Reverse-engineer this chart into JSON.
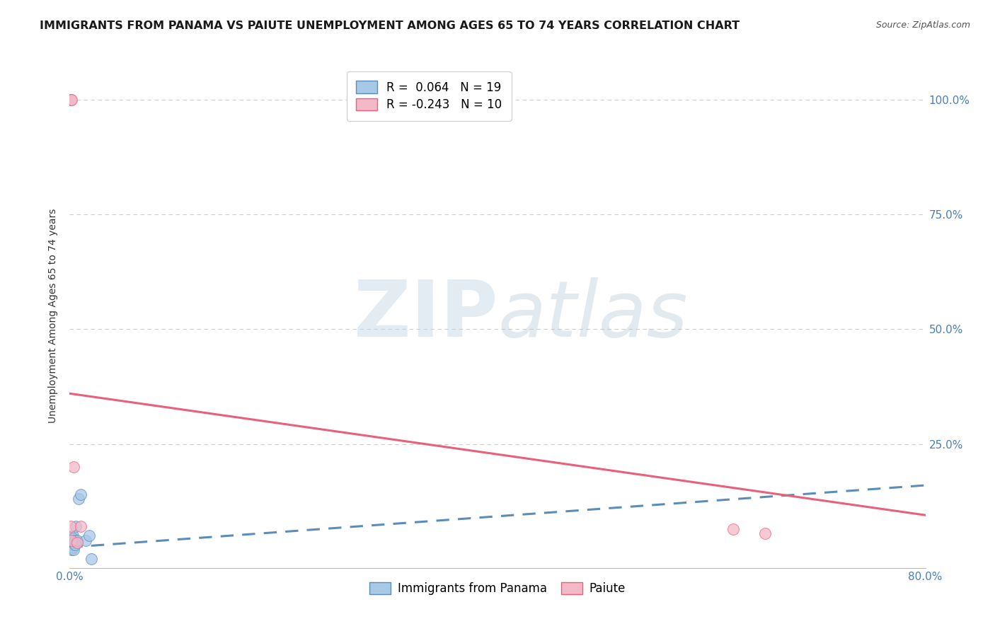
{
  "title": "IMMIGRANTS FROM PANAMA VS PAIUTE UNEMPLOYMENT AMONG AGES 65 TO 74 YEARS CORRELATION CHART",
  "source_text": "Source: ZipAtlas.com",
  "ylabel": "Unemployment Among Ages 65 to 74 years",
  "xlim": [
    0.0,
    0.8
  ],
  "ylim": [
    -0.02,
    1.08
  ],
  "blue_scatter_x": [
    0.001,
    0.002,
    0.002,
    0.002,
    0.003,
    0.003,
    0.003,
    0.003,
    0.004,
    0.004,
    0.005,
    0.005,
    0.006,
    0.007,
    0.008,
    0.01,
    0.015,
    0.018,
    0.02
  ],
  "blue_scatter_y": [
    0.03,
    0.02,
    0.04,
    0.035,
    0.03,
    0.025,
    0.05,
    0.045,
    0.02,
    0.035,
    0.03,
    0.04,
    0.07,
    0.04,
    0.13,
    0.14,
    0.04,
    0.05,
    0.0
  ],
  "pink_scatter_x": [
    0.001,
    0.002,
    0.004,
    0.007,
    0.01,
    0.62,
    0.65,
    0.001,
    0.001,
    0.002
  ],
  "pink_scatter_y": [
    0.07,
    0.04,
    0.2,
    0.035,
    0.07,
    0.065,
    0.055,
    1.0,
    1.0,
    1.0
  ],
  "blue_line_x": [
    0.0,
    0.8
  ],
  "blue_line_y": [
    0.025,
    0.16
  ],
  "pink_line_x": [
    0.0,
    0.8
  ],
  "pink_line_y": [
    0.36,
    0.095
  ],
  "legend_blue_r": "R =  0.064",
  "legend_blue_n": "N = 19",
  "legend_pink_r": "R = -0.243",
  "legend_pink_n": "N = 10",
  "blue_color": "#a8c8e8",
  "blue_line_color": "#5b8db8",
  "pink_color": "#f4b8c8",
  "pink_line_color": "#e8607a",
  "scatter_size": 130,
  "watermark_zip": "ZIP",
  "watermark_atlas": "atlas",
  "background_color": "#ffffff",
  "grid_color": "#cccccc",
  "axis_label_color": "#333333",
  "right_axis_color": "#4a7fb5",
  "title_fontsize": 11.5,
  "axis_label_fontsize": 10,
  "tick_fontsize": 11,
  "legend_fontsize": 12
}
